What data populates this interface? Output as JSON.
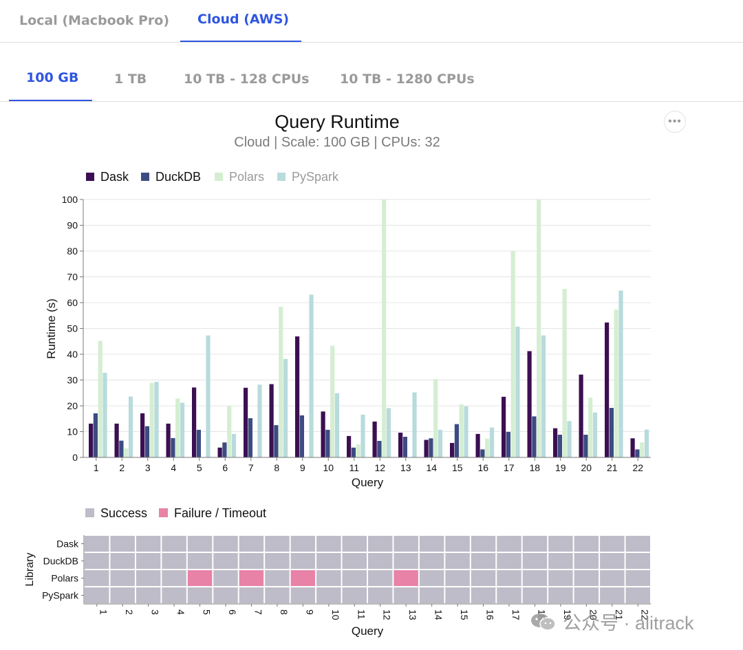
{
  "env_tabs": [
    {
      "label": "Local (Macbook Pro)",
      "active": false
    },
    {
      "label": "Cloud (AWS)",
      "active": true
    }
  ],
  "scale_tabs": [
    {
      "label": "100 GB",
      "active": true
    },
    {
      "label": "1 TB",
      "active": false
    },
    {
      "label": "10 TB - 128 CPUs",
      "active": false
    },
    {
      "label": "10 TB - 1280 CPUs",
      "active": false
    }
  ],
  "menu": {
    "icon": "more-horizontal-icon",
    "glyph": "•••"
  },
  "colors": {
    "accent": "#2f55e0",
    "dask": "#3b0f52",
    "duckdb": "#3d4b82",
    "polars": "#d5eed2",
    "pyspark": "#b8dbdc",
    "success": "#bdbcc8",
    "failure": "#e882a6"
  },
  "chart_data": [
    {
      "type": "bar",
      "title": "Query Runtime",
      "subtitle": "Cloud | Scale: 100 GB | CPUs: 32",
      "xlabel": "Query",
      "ylabel": "Runtime (s)",
      "ylim": [
        0,
        100
      ],
      "yticks": [
        0,
        10,
        20,
        30,
        40,
        50,
        60,
        70,
        80,
        90,
        100
      ],
      "grid": true,
      "legend_position": "top-left",
      "categories": [
        "1",
        "2",
        "3",
        "4",
        "5",
        "6",
        "7",
        "8",
        "9",
        "10",
        "11",
        "12",
        "13",
        "14",
        "15",
        "16",
        "17",
        "18",
        "19",
        "20",
        "21",
        "22"
      ],
      "series": [
        {
          "name": "Dask",
          "color": "#3b0f52",
          "values": [
            13.1,
            13.1,
            17.1,
            13.1,
            27.1,
            3.8,
            27.0,
            28.4,
            46.9,
            17.8,
            8.3,
            13.9,
            9.6,
            6.8,
            5.6,
            9.1,
            23.5,
            41.2,
            11.3,
            32.1,
            52.3,
            7.4
          ]
        },
        {
          "name": "DuckDB",
          "color": "#3d4b82",
          "values": [
            17.1,
            6.5,
            12.1,
            7.5,
            10.7,
            5.8,
            15.2,
            12.5,
            16.3,
            10.7,
            3.8,
            6.4,
            8.0,
            7.4,
            12.9,
            3.1,
            9.9,
            15.9,
            8.8,
            8.8,
            19.2,
            3.1
          ]
        },
        {
          "name": "Polars",
          "color": "#d5eed2",
          "values": [
            45.2,
            3.5,
            28.9,
            22.8,
            0,
            20.0,
            0,
            58.4,
            0,
            43.3,
            5.0,
            100,
            0,
            30.4,
            20.6,
            7.3,
            80.0,
            100,
            65.3,
            23.2,
            57.3,
            5.8
          ]
        },
        {
          "name": "PySpark",
          "color": "#b8dbdc",
          "values": [
            32.8,
            23.6,
            29.3,
            21.2,
            47.3,
            9.1,
            28.2,
            38.2,
            63.1,
            24.9,
            16.6,
            19.1,
            25.2,
            10.7,
            19.8,
            11.6,
            50.7,
            47.3,
            14.1,
            17.4,
            64.7,
            10.8
          ]
        }
      ]
    },
    {
      "type": "heatmap",
      "xlabel": "Query",
      "ylabel": "Library",
      "legend_position": "top-left",
      "legend": [
        {
          "label": "Success",
          "color": "#bdbcc8"
        },
        {
          "label": "Failure / Timeout",
          "color": "#e882a6"
        }
      ],
      "rows": [
        "Dask",
        "DuckDB",
        "Polars",
        "PySpark"
      ],
      "columns": [
        "1",
        "2",
        "3",
        "4",
        "5",
        "6",
        "7",
        "8",
        "9",
        "10",
        "11",
        "12",
        "13",
        "14",
        "15",
        "16",
        "17",
        "18",
        "19",
        "20",
        "21",
        "22"
      ],
      "failures": [
        {
          "library": "Polars",
          "query": "5"
        },
        {
          "library": "Polars",
          "query": "7"
        },
        {
          "library": "Polars",
          "query": "9"
        },
        {
          "library": "Polars",
          "query": "13"
        }
      ]
    }
  ],
  "watermark": {
    "icon": "wechat-icon",
    "text": "公众号 · alitrack"
  }
}
